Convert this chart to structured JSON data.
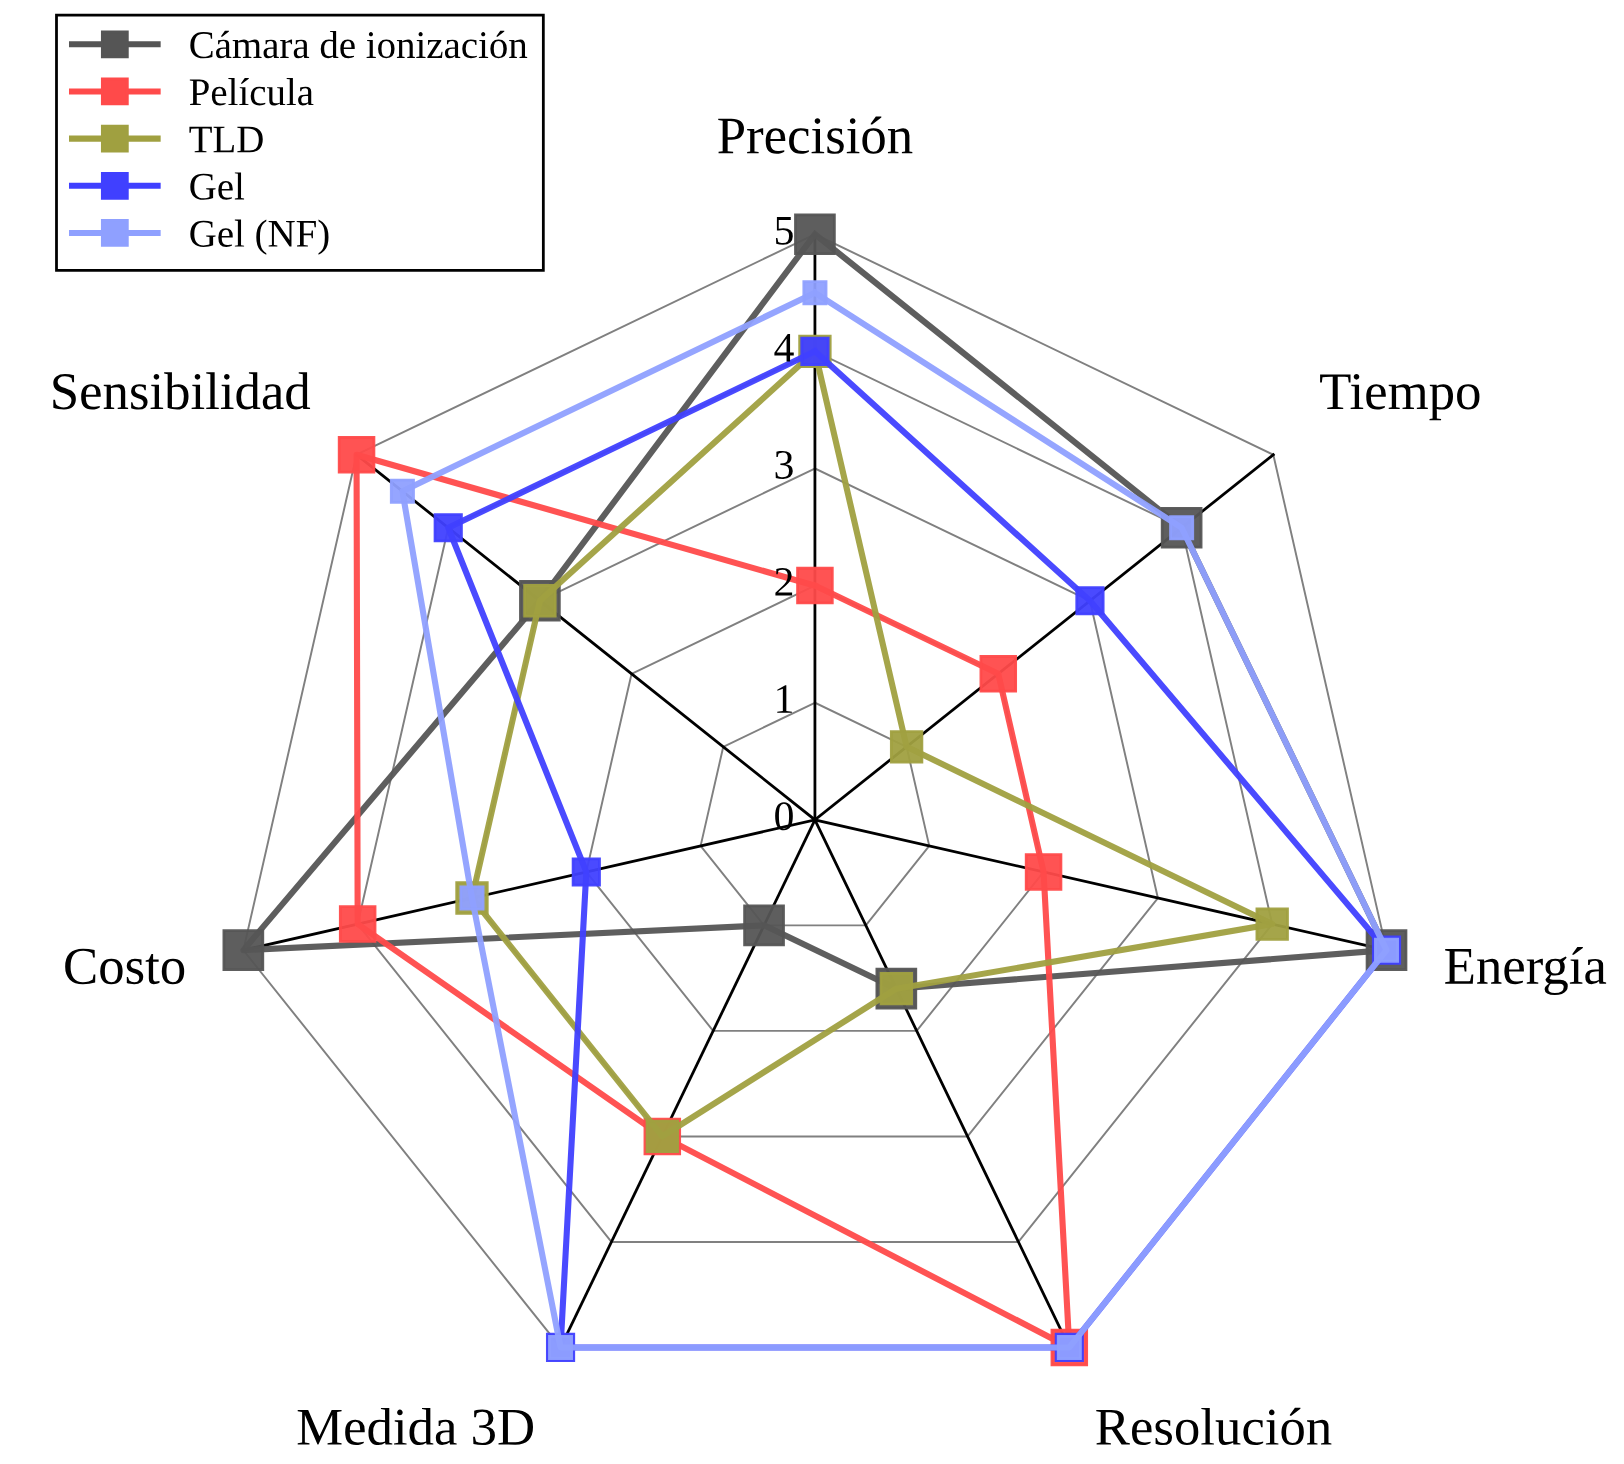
{
  "chart_data": {
    "type": "radar",
    "categories": [
      "Precisión",
      "Tiempo",
      "Energía",
      "Resolución",
      "Medida 3D",
      "Costo",
      "Sensibilidad"
    ],
    "ylim": [
      0,
      5
    ],
    "yticks": [
      0,
      1,
      2,
      3,
      4,
      5
    ],
    "marker": "square",
    "line_style": "solid",
    "legend": "top left",
    "grid": true,
    "series": [
      {
        "name": "Cámara de ionización",
        "color": "#555555",
        "values": [
          5,
          4,
          5,
          1.6,
          1,
          5,
          3
        ]
      },
      {
        "name": "Película",
        "color": "#ff4a4a",
        "values": [
          2,
          2,
          2,
          5,
          3,
          4,
          5
        ]
      },
      {
        "name": "TLD",
        "color": "#a0a040",
        "values": [
          4,
          1,
          4,
          1.6,
          3,
          3,
          3
        ]
      },
      {
        "name": "Gel",
        "color": "#4040ff",
        "values": [
          4,
          3,
          5,
          5,
          5,
          2,
          4
        ]
      },
      {
        "name": "Gel (NF)",
        "color": "#8fa0ff",
        "values": [
          4.5,
          4,
          5,
          5,
          5,
          3,
          4.5
        ]
      }
    ]
  }
}
